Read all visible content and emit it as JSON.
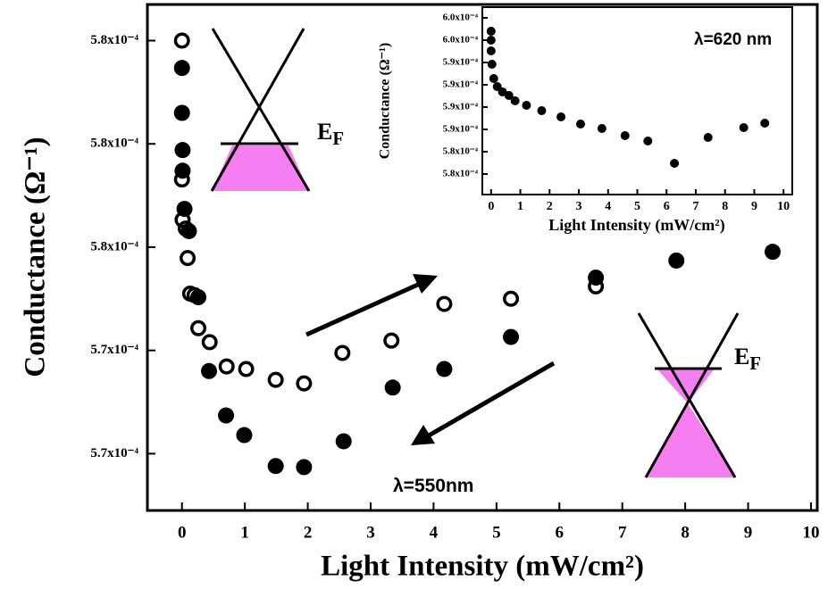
{
  "chart_data": [
    {
      "type": "scatter",
      "xlabel": "Light Intensity (mW/cm²)",
      "ylabel": "Conductance (Ω⁻¹)",
      "xlim": [
        -0.55,
        10.1
      ],
      "ylim": [
        0.0005699,
        0.0005797
      ],
      "xticks": [
        0,
        1,
        2,
        3,
        4,
        5,
        6,
        7,
        8,
        9,
        10
      ],
      "yticks": [
        {
          "value": 0.000571,
          "label": "5.7x10⁻⁴"
        },
        {
          "value": 0.000573,
          "label": "5.7x10⁻⁴"
        },
        {
          "value": 0.000575,
          "label": "5.8x10⁻⁴"
        },
        {
          "value": 0.000577,
          "label": "5.8x10⁻⁴"
        },
        {
          "value": 0.000579,
          "label": "5.8x10⁻⁴"
        }
      ],
      "annotations": [
        {
          "text": "E",
          "subscript": "F"
        },
        {
          "text": "E",
          "subscript": "F"
        },
        {
          "text": "λ=550nm"
        }
      ],
      "series": [
        {
          "marker": "open",
          "color": "#000000",
          "x": [
            0,
            0,
            0.01,
            0.06,
            0.09,
            0.13,
            0.2,
            0.26,
            0.44,
            0.71,
            1.02,
            1.49,
            1.94,
            2.55,
            3.33,
            4.17,
            5.23,
            6.58
          ],
          "values": [
            0.000579,
            0.00057631,
            0.00057553,
            0.00057536,
            0.00057479,
            0.0005741,
            0.00057407,
            0.00057343,
            0.00057316,
            0.00057269,
            0.00057264,
            0.00057243,
            0.00057236,
            0.00057295,
            0.00057319,
            0.0005739,
            0.000574,
            0.00057424
          ]
        },
        {
          "marker": "filled",
          "color": "#000000",
          "x": [
            0,
            0,
            0.01,
            0.01,
            0.04,
            0.11,
            0.26,
            0.43,
            0.7,
            0.99,
            1.49,
            1.94,
            2.57,
            3.35,
            4.17,
            5.23,
            6.58,
            7.86,
            9.39
          ],
          "values": [
            0.00057847,
            0.0005776,
            0.00057688,
            0.00057648,
            0.00057574,
            0.00057531,
            0.00057403,
            0.0005726,
            0.00057174,
            0.00057136,
            0.00057076,
            0.00057074,
            0.00057124,
            0.00057228,
            0.00057264,
            0.00057326,
            0.00057441,
            0.00057474,
            0.00057491
          ]
        }
      ]
    },
    {
      "type": "scatter",
      "xlabel": "Light Intensity (mW/cm²)",
      "ylabel": "Conductance (Ω⁻¹)",
      "xlim": [
        -0.3,
        10.3
      ],
      "ylim": [
        0.0005792,
        0.0006002
      ],
      "xticks": [
        0,
        1,
        2,
        3,
        4,
        5,
        6,
        7,
        8,
        9,
        10
      ],
      "yticks": [
        {
          "value": 0.0005815,
          "label": "5.8x10⁻⁴"
        },
        {
          "value": 0.000584,
          "label": "5.8x10⁻⁴"
        },
        {
          "value": 0.0005865,
          "label": "5.9x10⁻⁴"
        },
        {
          "value": 0.000589,
          "label": "5.9x10⁻⁴"
        },
        {
          "value": 0.0005915,
          "label": "5.9x10⁻⁴"
        },
        {
          "value": 0.000594,
          "label": "5.9x10⁻⁴"
        },
        {
          "value": 0.0005965,
          "label": "6.0x10⁻⁴"
        },
        {
          "value": 0.000599,
          "label": "6.0x10⁻⁴"
        }
      ],
      "annotations": [
        {
          "text": "λ=620 nm"
        }
      ],
      "series": [
        {
          "marker": "filled",
          "color": "#000000",
          "x": [
            0,
            0,
            0,
            0.03,
            0.09,
            0.21,
            0.39,
            0.61,
            0.82,
            1.21,
            1.73,
            2.39,
            3.06,
            3.79,
            4.58,
            5.36,
            6.27,
            7.42,
            8.64,
            9.36
          ],
          "values": [
            0.0005975,
            0.0005965,
            0.0005953,
            0.0005938,
            0.0005922,
            0.0005913,
            0.0005907,
            0.0005903,
            0.0005897,
            0.0005892,
            0.0005886,
            0.0005879,
            0.0005871,
            0.0005866,
            0.0005858,
            0.0005852,
            0.0005827,
            0.0005856,
            0.0005867,
            0.0005872
          ]
        }
      ]
    }
  ]
}
